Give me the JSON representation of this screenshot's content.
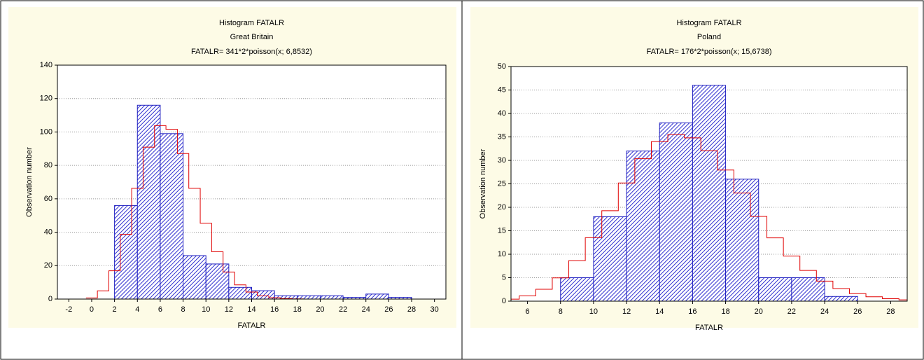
{
  "chart_data": [
    {
      "type": "histogram",
      "title": "Histogram FATALR",
      "subtitle": "Great Britain",
      "annotation": "FATALR= 341*2*poisson(x; 6,8532)",
      "xlabel": "FATALR",
      "ylabel": "Observation number",
      "bins": [
        -2,
        0,
        2,
        4,
        6,
        8,
        10,
        12,
        14,
        16,
        18,
        20,
        22,
        24,
        26,
        28,
        30
      ],
      "counts": [
        0,
        0,
        56,
        116,
        99,
        26,
        21,
        7,
        5,
        2,
        2,
        2,
        1,
        3,
        1,
        0
      ],
      "color": "#2020c0",
      "fit": {
        "color": "#e00000",
        "x": [
          0,
          1,
          2,
          3,
          4,
          5,
          6,
          7,
          8,
          9,
          10,
          11,
          12,
          13,
          14,
          15,
          16,
          17,
          18,
          19,
          20,
          21,
          22,
          23,
          24,
          25,
          26,
          27,
          28,
          29
        ],
        "values": [
          0.7,
          4.9,
          16.9,
          38.7,
          66.3,
          90.9,
          103.8,
          101.6,
          87.1,
          66.3,
          45.4,
          28.3,
          16.2,
          8.5,
          4.2,
          1.9,
          0.8,
          0.3,
          0.1,
          0,
          0,
          0,
          0,
          0,
          0,
          0,
          0,
          0,
          0,
          0
        ]
      },
      "xlim": [
        -3,
        31
      ],
      "ylim": [
        0,
        140
      ],
      "xticks": [
        -2,
        0,
        2,
        4,
        6,
        8,
        10,
        12,
        14,
        16,
        18,
        20,
        22,
        24,
        26,
        28,
        30
      ],
      "yticks": [
        0,
        20,
        40,
        60,
        80,
        100,
        120,
        140
      ],
      "grid": true
    },
    {
      "type": "histogram",
      "title": "Histogram FATALR",
      "subtitle": "Poland",
      "annotation": "FATALR= 176*2*poisson(x; 15,6738)",
      "xlabel": "FATALR",
      "ylabel": "Observation number",
      "bins": [
        6,
        8,
        10,
        12,
        14,
        16,
        18,
        20,
        22,
        24,
        26,
        28
      ],
      "counts": [
        0,
        5,
        18,
        32,
        38,
        46,
        26,
        5,
        5,
        1,
        0
      ],
      "color": "#2020c0",
      "fit": {
        "color": "#e00000",
        "x": [
          5,
          6,
          7,
          8,
          9,
          10,
          11,
          12,
          13,
          14,
          15,
          16,
          17,
          18,
          19,
          20,
          21,
          22,
          23,
          24,
          25,
          26,
          27,
          28,
          29
        ],
        "values": [
          0.43,
          1.13,
          2.53,
          4.96,
          8.63,
          13.53,
          19.28,
          25.18,
          30.36,
          33.99,
          35.52,
          34.8,
          32.08,
          27.94,
          23.04,
          18.06,
          13.48,
          9.6,
          6.54,
          4.27,
          2.68,
          1.61,
          0.94,
          0.52,
          0.28
        ]
      },
      "xlim": [
        5,
        29
      ],
      "ylim": [
        0,
        50
      ],
      "xticks": [
        6,
        8,
        10,
        12,
        14,
        16,
        18,
        20,
        22,
        24,
        26,
        28
      ],
      "yticks": [
        0,
        5,
        10,
        15,
        20,
        25,
        30,
        35,
        40,
        45,
        50
      ],
      "grid": true
    }
  ]
}
